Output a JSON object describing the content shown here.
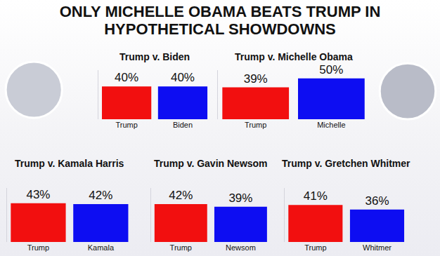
{
  "title": "ONLY MICHELLE OBAMA BEATS TRUMP IN HYPOTHETICAL SHOWDOWNS",
  "chart_data": [
    {
      "type": "bar",
      "title": "Trump v. Biden",
      "categories": [
        "Trump",
        "Biden"
      ],
      "values": [
        40,
        40
      ],
      "value_labels": [
        "40%",
        "40%"
      ],
      "colors": [
        "#f20f0f",
        "#0d0df2"
      ],
      "ylim": [
        0,
        60
      ],
      "grid": false,
      "data_labels": true,
      "tick_labels": "x"
    },
    {
      "type": "bar",
      "title": "Trump v. Michelle Obama",
      "categories": [
        "Trump",
        "Michelle"
      ],
      "values": [
        39,
        50
      ],
      "value_labels": [
        "39%",
        "50%"
      ],
      "colors": [
        "#f20f0f",
        "#0d0df2"
      ],
      "ylim": [
        0,
        60
      ],
      "grid": false,
      "data_labels": true,
      "tick_labels": "x"
    },
    {
      "type": "bar",
      "title": "Trump v. Kamala Harris",
      "categories": [
        "Trump",
        "Kamala"
      ],
      "values": [
        43,
        42
      ],
      "value_labels": [
        "43%",
        "42%"
      ],
      "colors": [
        "#f20f0f",
        "#0d0df2"
      ],
      "ylim": [
        0,
        60
      ],
      "grid": false,
      "data_labels": true,
      "tick_labels": "x"
    },
    {
      "type": "bar",
      "title": "Trump v. Gavin Newsom",
      "categories": [
        "Trump",
        "Newsom"
      ],
      "values": [
        42,
        39
      ],
      "value_labels": [
        "42%",
        "39%"
      ],
      "colors": [
        "#f20f0f",
        "#0d0df2"
      ],
      "ylim": [
        0,
        60
      ],
      "grid": false,
      "data_labels": true,
      "tick_labels": "x"
    },
    {
      "type": "bar",
      "title": "Trump v. Gretchen Whitmer",
      "categories": [
        "Trump",
        "Whitmer"
      ],
      "values": [
        41,
        36
      ],
      "value_labels": [
        "41%",
        "36%"
      ],
      "colors": [
        "#f20f0f",
        "#0d0df2"
      ],
      "ylim": [
        0,
        60
      ],
      "grid": false,
      "data_labels": true,
      "tick_labels": "x"
    }
  ]
}
